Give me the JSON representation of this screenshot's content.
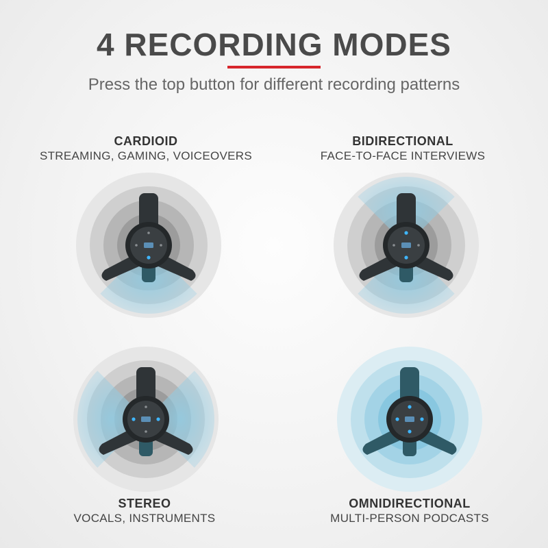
{
  "header": {
    "title": "4 RECORDING MODES",
    "subtitle": "Press the top button for different recording patterns",
    "accent_color": "#d7262c"
  },
  "modes": [
    {
      "name": "CARDIOID",
      "description": "STREAMING, GAMING, VOICEOVERS",
      "pattern": "cardioid"
    },
    {
      "name": "BIDIRECTIONAL",
      "description": "FACE-TO-FACE INTERVIEWS",
      "pattern": "bidirectional"
    },
    {
      "name": "STEREO",
      "description": "VOCALS, INSTRUMENTS",
      "pattern": "stereo"
    },
    {
      "name": "OMNIDIRECTIONAL",
      "description": "MULTI-PERSON PODCASTS",
      "pattern": "omnidirectional"
    }
  ],
  "colors": {
    "pickup_blue": "#8ecde6",
    "ring_gray": "#9a9a9a",
    "device_dark": "#2f3437",
    "device_teal": "#2f5a66",
    "led_blue": "#3fb6ff"
  }
}
